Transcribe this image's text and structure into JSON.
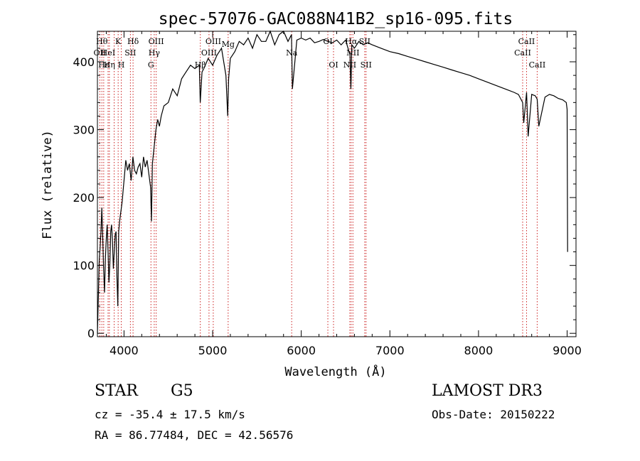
{
  "chart_data": {
    "type": "line",
    "title": "spec-57076-GAC088N41B2_sp16-095.fits",
    "xlabel": "Wavelength (Å)",
    "ylabel": "Flux (relative)",
    "xlim": [
      3700,
      9100
    ],
    "ylim": [
      -5,
      445
    ],
    "xticks": [
      4000,
      5000,
      6000,
      7000,
      8000,
      9000
    ],
    "yticks": [
      0,
      100,
      200,
      300,
      400
    ],
    "grid": false,
    "series": [
      {
        "name": "flux",
        "x": [
          3700,
          3710,
          3720,
          3730,
          3740,
          3750,
          3760,
          3770,
          3780,
          3790,
          3800,
          3810,
          3820,
          3830,
          3840,
          3850,
          3860,
          3870,
          3880,
          3890,
          3900,
          3910,
          3920,
          3930,
          3940,
          3950,
          3960,
          3970,
          3980,
          3990,
          4000,
          4020,
          4040,
          4060,
          4080,
          4100,
          4120,
          4140,
          4160,
          4180,
          4200,
          4220,
          4240,
          4260,
          4280,
          4300,
          4310,
          4320,
          4340,
          4360,
          4380,
          4400,
          4420,
          4450,
          4500,
          4550,
          4600,
          4650,
          4700,
          4750,
          4800,
          4850,
          4860,
          4880,
          4900,
          4950,
          5000,
          5050,
          5100,
          5150,
          5170,
          5180,
          5200,
          5250,
          5300,
          5350,
          5400,
          5450,
          5500,
          5550,
          5600,
          5650,
          5700,
          5750,
          5800,
          5850,
          5890,
          5900,
          5950,
          6000,
          6050,
          6100,
          6150,
          6200,
          6250,
          6300,
          6350,
          6400,
          6450,
          6500,
          6550,
          6560,
          6563,
          6570,
          6600,
          6650,
          6700,
          6750,
          6800,
          6900,
          7000,
          7100,
          7200,
          7300,
          7400,
          7500,
          7600,
          7700,
          7800,
          7900,
          8000,
          8100,
          8200,
          8300,
          8400,
          8450,
          8498,
          8510,
          8542,
          8560,
          8600,
          8640,
          8662,
          8680,
          8750,
          8800,
          8850,
          8900,
          8950,
          8990,
          9000,
          9005
        ],
        "values": [
          0,
          50,
          105,
          125,
          150,
          185,
          140,
          95,
          60,
          110,
          140,
          160,
          120,
          75,
          100,
          150,
          160,
          135,
          95,
          120,
          145,
          150,
          85,
          40,
          150,
          165,
          175,
          185,
          195,
          210,
          225,
          255,
          240,
          250,
          225,
          260,
          240,
          235,
          245,
          250,
          230,
          260,
          245,
          255,
          235,
          215,
          165,
          250,
          275,
          300,
          315,
          305,
          320,
          335,
          340,
          360,
          350,
          375,
          385,
          395,
          390,
          395,
          340,
          385,
          390,
          405,
          395,
          410,
          420,
          380,
          320,
          375,
          405,
          415,
          430,
          425,
          435,
          420,
          440,
          430,
          430,
          445,
          425,
          440,
          445,
          430,
          440,
          360,
          432,
          435,
          432,
          435,
          428,
          430,
          433,
          430,
          428,
          432,
          425,
          432,
          410,
          360,
          375,
          425,
          420,
          430,
          425,
          428,
          425,
          420,
          415,
          412,
          408,
          404,
          400,
          396,
          392,
          388,
          384,
          380,
          375,
          370,
          365,
          360,
          355,
          352,
          340,
          310,
          355,
          290,
          352,
          350,
          345,
          305,
          348,
          352,
          350,
          346,
          344,
          340,
          330,
          120
        ]
      }
    ],
    "line_markers": [
      {
        "wavelength": 3727,
        "label": "OII",
        "row": 2
      },
      {
        "wavelength": 3750,
        "label": "Hθ",
        "row": 1
      },
      {
        "wavelength": 3771,
        "label": "Hε",
        "row": 3
      },
      {
        "wavelength": 3835,
        "label": "Hη",
        "row": 3
      },
      {
        "wavelength": 3820,
        "label": "HeI",
        "row": 2
      },
      {
        "wavelength": 3889,
        "label": "",
        "row": 0
      },
      {
        "wavelength": 3934,
        "label": "K",
        "row": 1
      },
      {
        "wavelength": 3969,
        "label": "H",
        "row": 3
      },
      {
        "wavelength": 4072,
        "label": "SII",
        "row": 2
      },
      {
        "wavelength": 4102,
        "label": "Hδ",
        "row": 1
      },
      {
        "wavelength": 4304,
        "label": "G",
        "row": 3
      },
      {
        "wavelength": 4341,
        "label": "Hγ",
        "row": 2
      },
      {
        "wavelength": 4363,
        "label": "OIII",
        "row": 1
      },
      {
        "wavelength": 4861,
        "label": "Hβ",
        "row": 3
      },
      {
        "wavelength": 4959,
        "label": "OIII",
        "row": 2
      },
      {
        "wavelength": 5007,
        "label": "OIII",
        "row": 1
      },
      {
        "wavelength": 5175,
        "label": "Mg",
        "row": 0
      },
      {
        "wavelength": 5892,
        "label": "Na",
        "row": 2
      },
      {
        "wavelength": 6300,
        "label": "OI",
        "row": 1
      },
      {
        "wavelength": 6364,
        "label": "OI",
        "row": 3
      },
      {
        "wavelength": 6548,
        "label": "NII",
        "row": 3
      },
      {
        "wavelength": 6563,
        "label": "Hα",
        "row": 1
      },
      {
        "wavelength": 6583,
        "label": "NII",
        "row": 2
      },
      {
        "wavelength": 6716,
        "label": "SII",
        "row": 1
      },
      {
        "wavelength": 6731,
        "label": "SII",
        "row": 3
      },
      {
        "wavelength": 8498,
        "label": "CaII",
        "row": 2
      },
      {
        "wavelength": 8542,
        "label": "CaII",
        "row": 1
      },
      {
        "wavelength": 8662,
        "label": "CaII",
        "row": 3
      }
    ]
  },
  "info": {
    "class": "STAR",
    "subclass": "G5",
    "survey": "LAMOST DR3",
    "cz": "cz = -35.4 ± 17.5 km/s",
    "obs_date": "Obs-Date: 20150222",
    "coords": "RA =  86.77484, DEC =  42.56576"
  },
  "colors": {
    "spectrum": "#000000",
    "marker": "#cc2222",
    "axis": "#000000"
  }
}
